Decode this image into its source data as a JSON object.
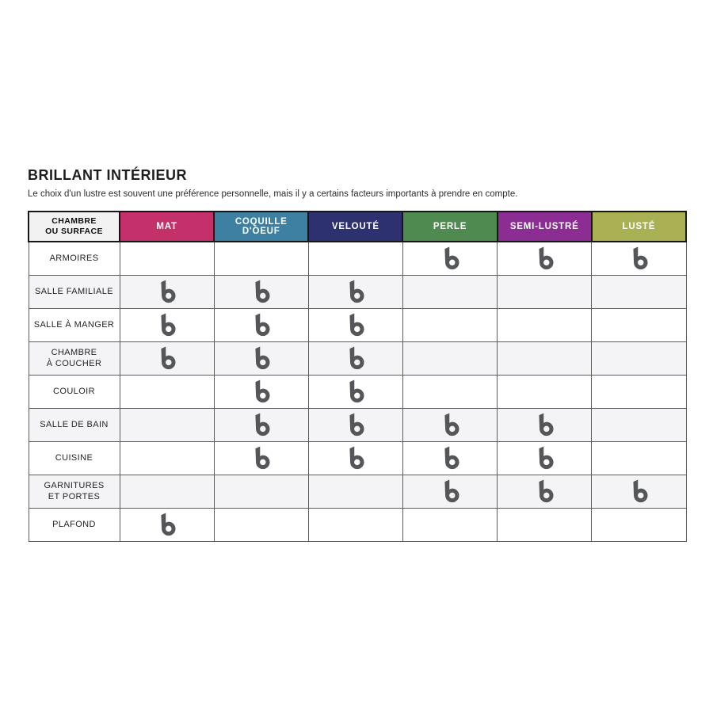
{
  "page": {
    "title": "BRILLANT INTÉRIEUR",
    "subtitle": "Le choix d'un lustre est souvent une préférence personnelle, mais il y a certains facteurs importants à prendre en compte."
  },
  "table": {
    "corner_header_lines": [
      "CHAMBRE",
      "OU SURFACE"
    ],
    "columns": [
      {
        "key": "mat",
        "label": "MAT",
        "color": "#c43069"
      },
      {
        "key": "coquille",
        "label": "COQUILLE D'OEUF",
        "color": "#3d80a2"
      },
      {
        "key": "veloute",
        "label": "VELOUTÉ",
        "color": "#2d316f"
      },
      {
        "key": "perle",
        "label": "PERLE",
        "color": "#4f8b50"
      },
      {
        "key": "semi_lustre",
        "label": "SEMI-LUSTRÉ",
        "color": "#8c2d94"
      },
      {
        "key": "luste",
        "label": "LUSTÉ",
        "color": "#a9b154"
      }
    ],
    "icon": {
      "name": "b-logo-icon",
      "color": "#55565a"
    },
    "rows": [
      {
        "label_lines": [
          "ARMOIRES"
        ],
        "shaded": false,
        "sheens": [
          "perle",
          "semi_lustre",
          "luste"
        ]
      },
      {
        "label_lines": [
          "SALLE FAMILIALE"
        ],
        "shaded": true,
        "sheens": [
          "mat",
          "coquille",
          "veloute"
        ]
      },
      {
        "label_lines": [
          "SALLE À MANGER"
        ],
        "shaded": false,
        "sheens": [
          "mat",
          "coquille",
          "veloute"
        ]
      },
      {
        "label_lines": [
          "CHAMBRE",
          "À COUCHER"
        ],
        "shaded": true,
        "sheens": [
          "mat",
          "coquille",
          "veloute"
        ]
      },
      {
        "label_lines": [
          "COULOIR"
        ],
        "shaded": false,
        "sheens": [
          "coquille",
          "veloute"
        ]
      },
      {
        "label_lines": [
          "SALLE DE BAIN"
        ],
        "shaded": true,
        "sheens": [
          "coquille",
          "veloute",
          "perle",
          "semi_lustre"
        ]
      },
      {
        "label_lines": [
          "CUISINE"
        ],
        "shaded": false,
        "sheens": [
          "coquille",
          "veloute",
          "perle",
          "semi_lustre"
        ]
      },
      {
        "label_lines": [
          "GARNITURES",
          "ET PORTES"
        ],
        "shaded": true,
        "sheens": [
          "perle",
          "semi_lustre",
          "luste"
        ]
      },
      {
        "label_lines": [
          "PLAFOND"
        ],
        "shaded": false,
        "sheens": [
          "mat"
        ]
      }
    ]
  },
  "chart_data": {
    "type": "table",
    "title": "BRILLANT INTÉRIEUR",
    "subtitle": "Le choix d'un lustre est souvent une préférence personnelle, mais il y a certains facteurs importants à prendre en compte.",
    "row_header": "CHAMBRE OU SURFACE",
    "columns": [
      "MAT",
      "COQUILLE D'OEUF",
      "VELOUTÉ",
      "PERLE",
      "SEMI-LUSTRÉ",
      "LUSTÉ"
    ],
    "column_colors": [
      "#c43069",
      "#3d80a2",
      "#2d316f",
      "#4f8b50",
      "#8c2d94",
      "#a9b154"
    ],
    "rows": [
      "ARMOIRES",
      "SALLE FAMILIALE",
      "SALLE À MANGER",
      "CHAMBRE À COUCHER",
      "COULOIR",
      "SALLE DE BAIN",
      "CUISINE",
      "GARNITURES ET PORTES",
      "PLAFOND"
    ],
    "matrix": [
      [
        0,
        0,
        0,
        1,
        1,
        1
      ],
      [
        1,
        1,
        1,
        0,
        0,
        0
      ],
      [
        1,
        1,
        1,
        0,
        0,
        0
      ],
      [
        1,
        1,
        1,
        0,
        0,
        0
      ],
      [
        0,
        1,
        1,
        0,
        0,
        0
      ],
      [
        0,
        1,
        1,
        1,
        1,
        0
      ],
      [
        0,
        1,
        1,
        1,
        1,
        0
      ],
      [
        0,
        0,
        0,
        1,
        1,
        1
      ],
      [
        1,
        0,
        0,
        0,
        0,
        0
      ]
    ],
    "cell_marker": "b-logo-icon (1 = marker present)"
  }
}
